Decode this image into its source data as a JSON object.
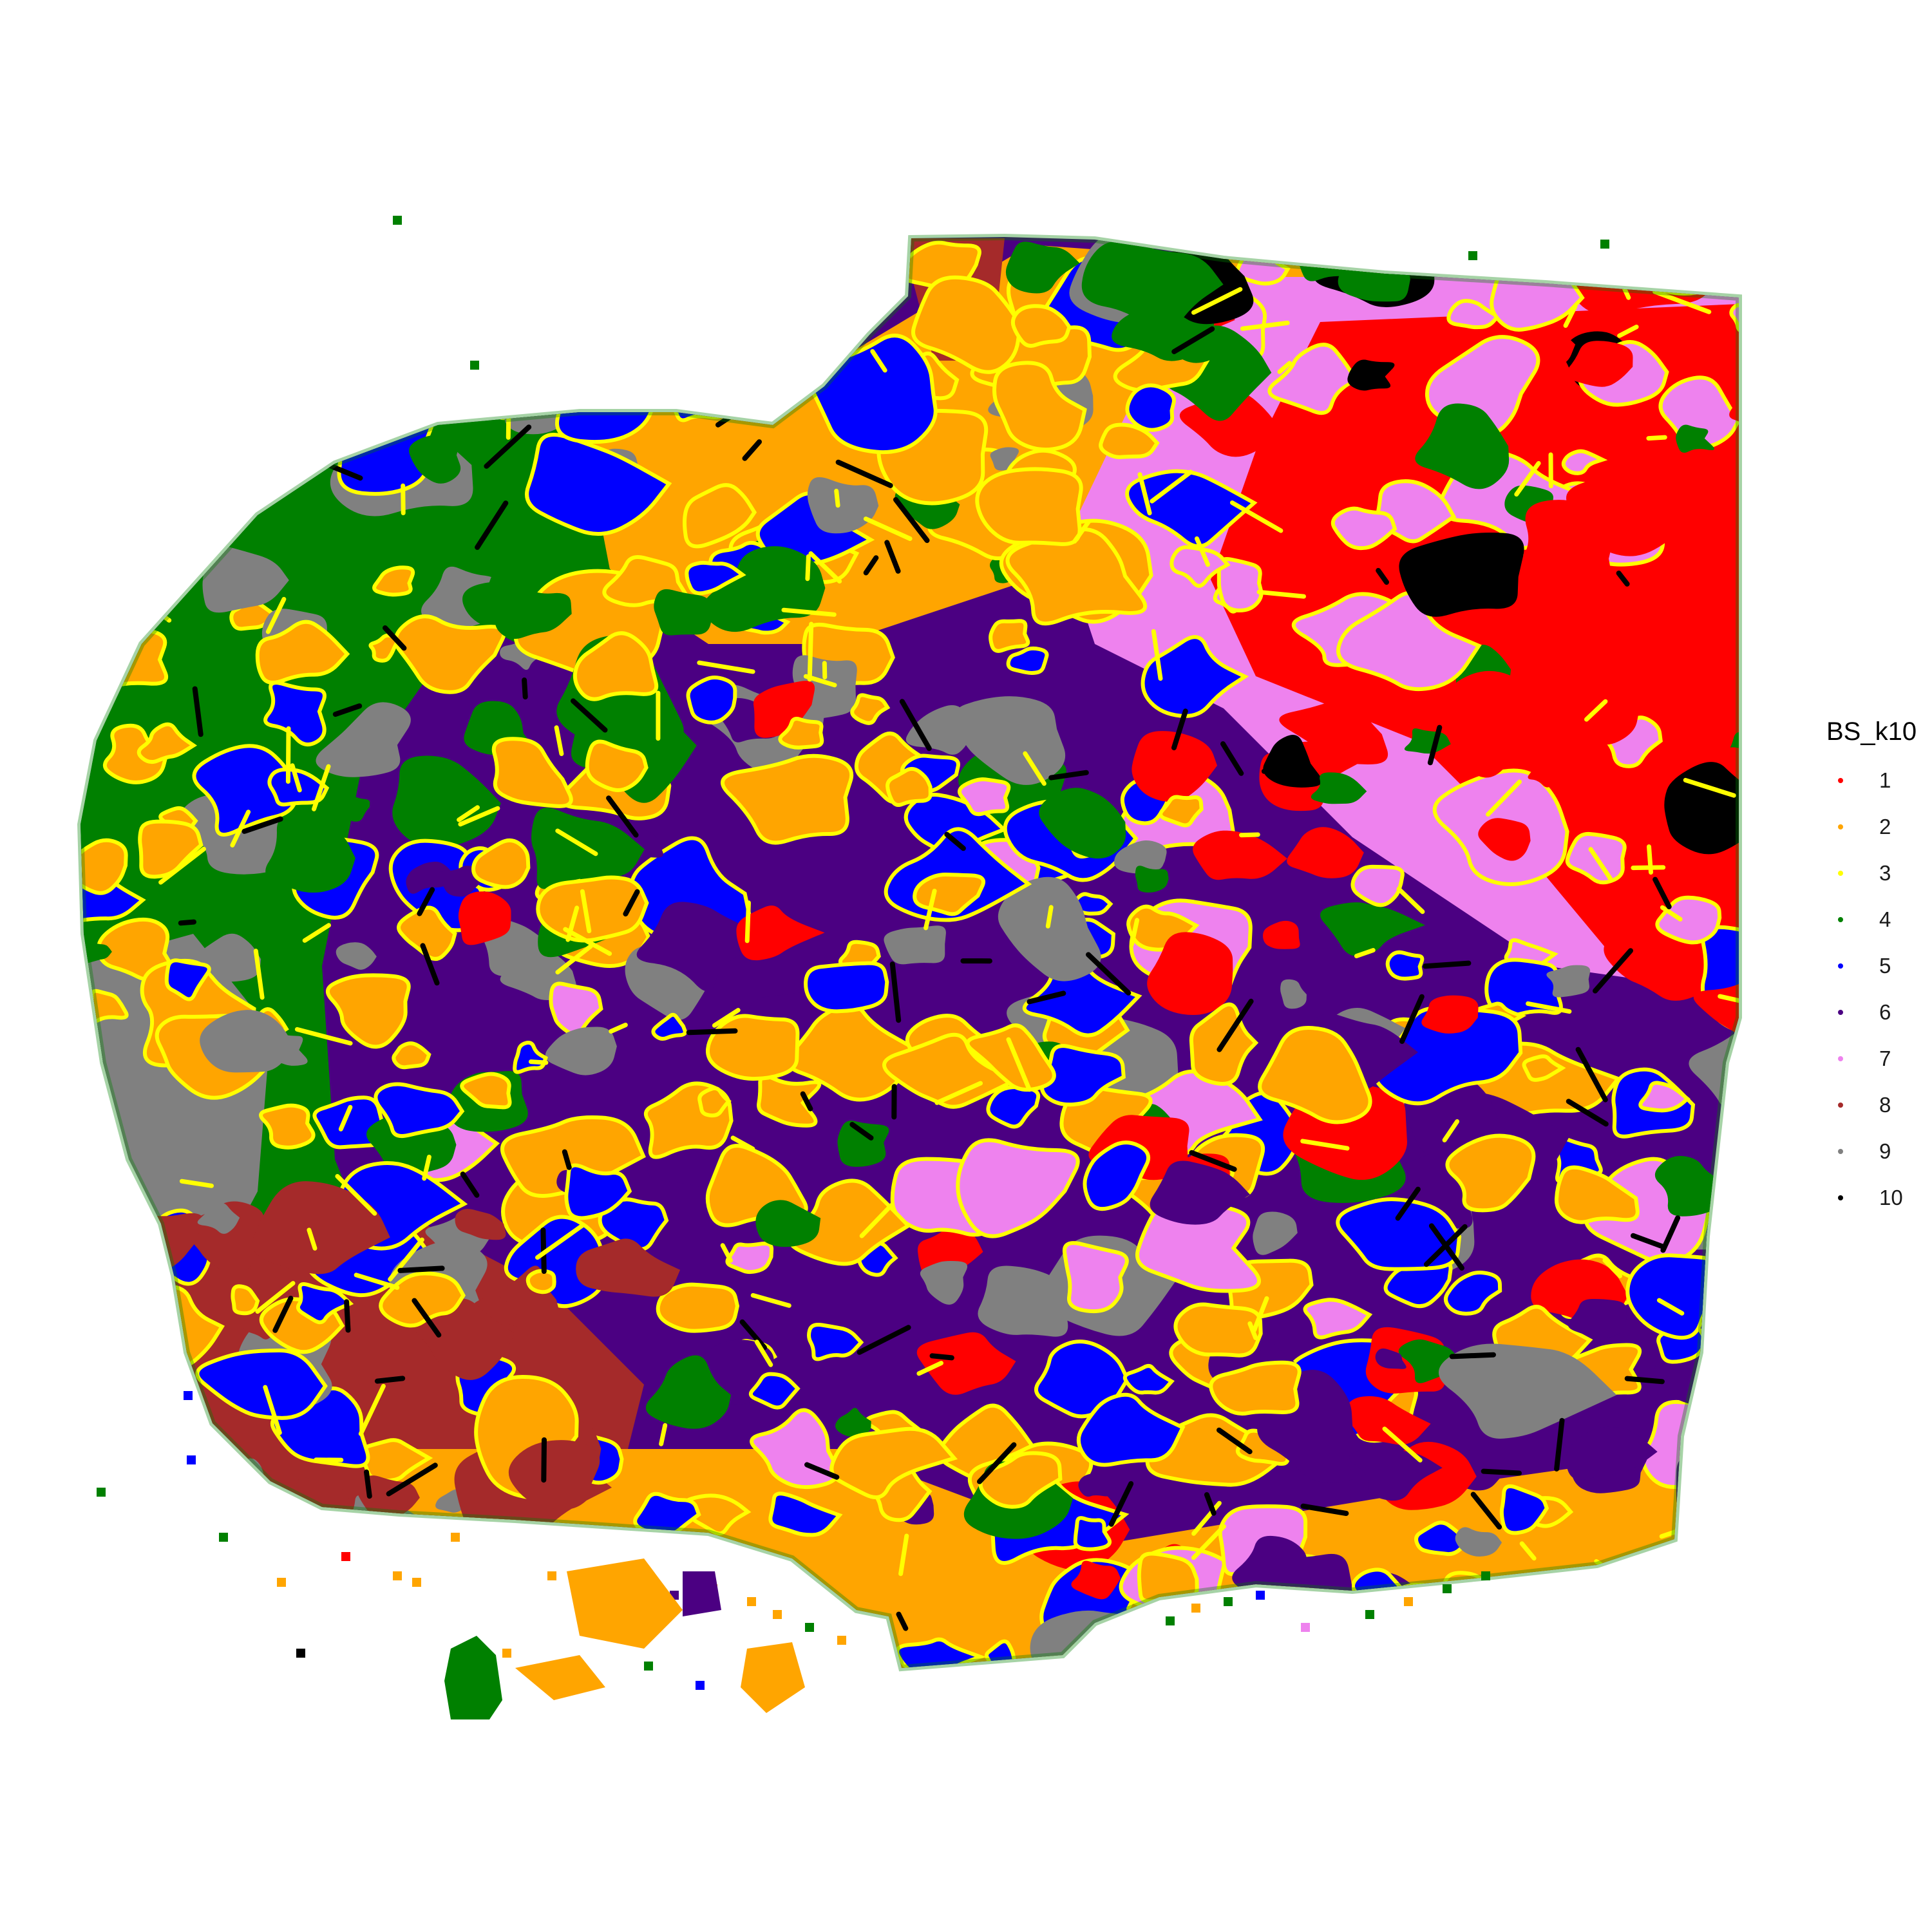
{
  "chart_data": {
    "type": "scatter",
    "title": "",
    "xlabel": "",
    "ylabel": "",
    "grid": false,
    "axes_visible": false,
    "legend_position": "right",
    "legend": {
      "title": "BS_k10",
      "entries": [
        {
          "label": "1",
          "color": "#FF0000"
        },
        {
          "label": "2",
          "color": "#FFA500"
        },
        {
          "label": "3",
          "color": "#FFFF00"
        },
        {
          "label": "4",
          "color": "#008000"
        },
        {
          "label": "5",
          "color": "#0000FF"
        },
        {
          "label": "6",
          "color": "#4B0082"
        },
        {
          "label": "7",
          "color": "#EE82EE"
        },
        {
          "label": "8",
          "color": "#A52A2A"
        },
        {
          "label": "9",
          "color": "#808080"
        },
        {
          "label": "10",
          "color": "#000000"
        }
      ]
    },
    "series_note": "",
    "regions": [
      {
        "cluster": "1",
        "color": "#FF0000"
      },
      {
        "cluster": "2",
        "color": "#FFA500"
      },
      {
        "cluster": "3",
        "color": "#FFFF00"
      },
      {
        "cluster": "4",
        "color": "#008000"
      },
      {
        "cluster": "5",
        "color": "#0000FF"
      },
      {
        "cluster": "6",
        "color": "#4B0082"
      },
      {
        "cluster": "7",
        "color": "#EE82EE"
      },
      {
        "cluster": "8",
        "color": "#A52A2A"
      },
      {
        "cluster": "9",
        "color": "#808080"
      },
      {
        "cluster": "10",
        "color": "#000000"
      }
    ]
  }
}
